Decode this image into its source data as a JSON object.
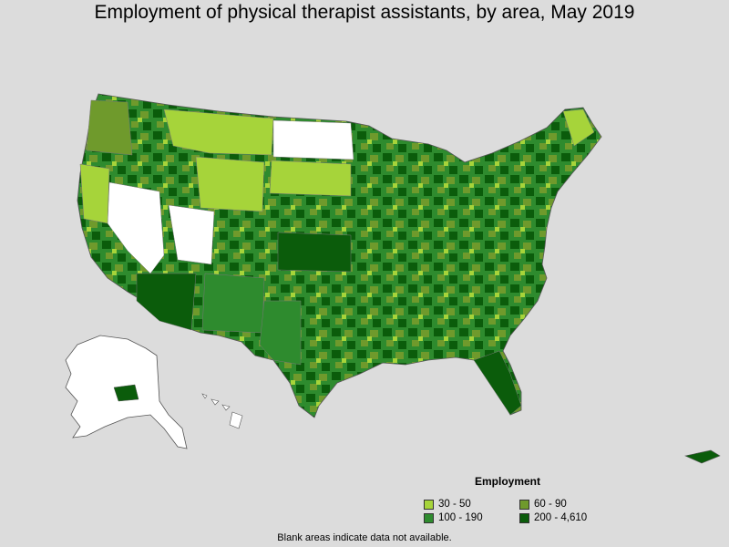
{
  "title": "Employment of physical therapist assistants, by area, May 2019",
  "legend": {
    "title": "Employment",
    "items": [
      {
        "label": "30 - 50",
        "color": "#a6d43a"
      },
      {
        "label": "60 - 90",
        "color": "#6f9a2c"
      },
      {
        "label": "100 - 190",
        "color": "#2e8b2e"
      },
      {
        "label": "200 - 4,610",
        "color": "#0b5c0b"
      }
    ]
  },
  "no_data_color": "#ffffff",
  "footnote": "Blank areas indicate data not available."
}
